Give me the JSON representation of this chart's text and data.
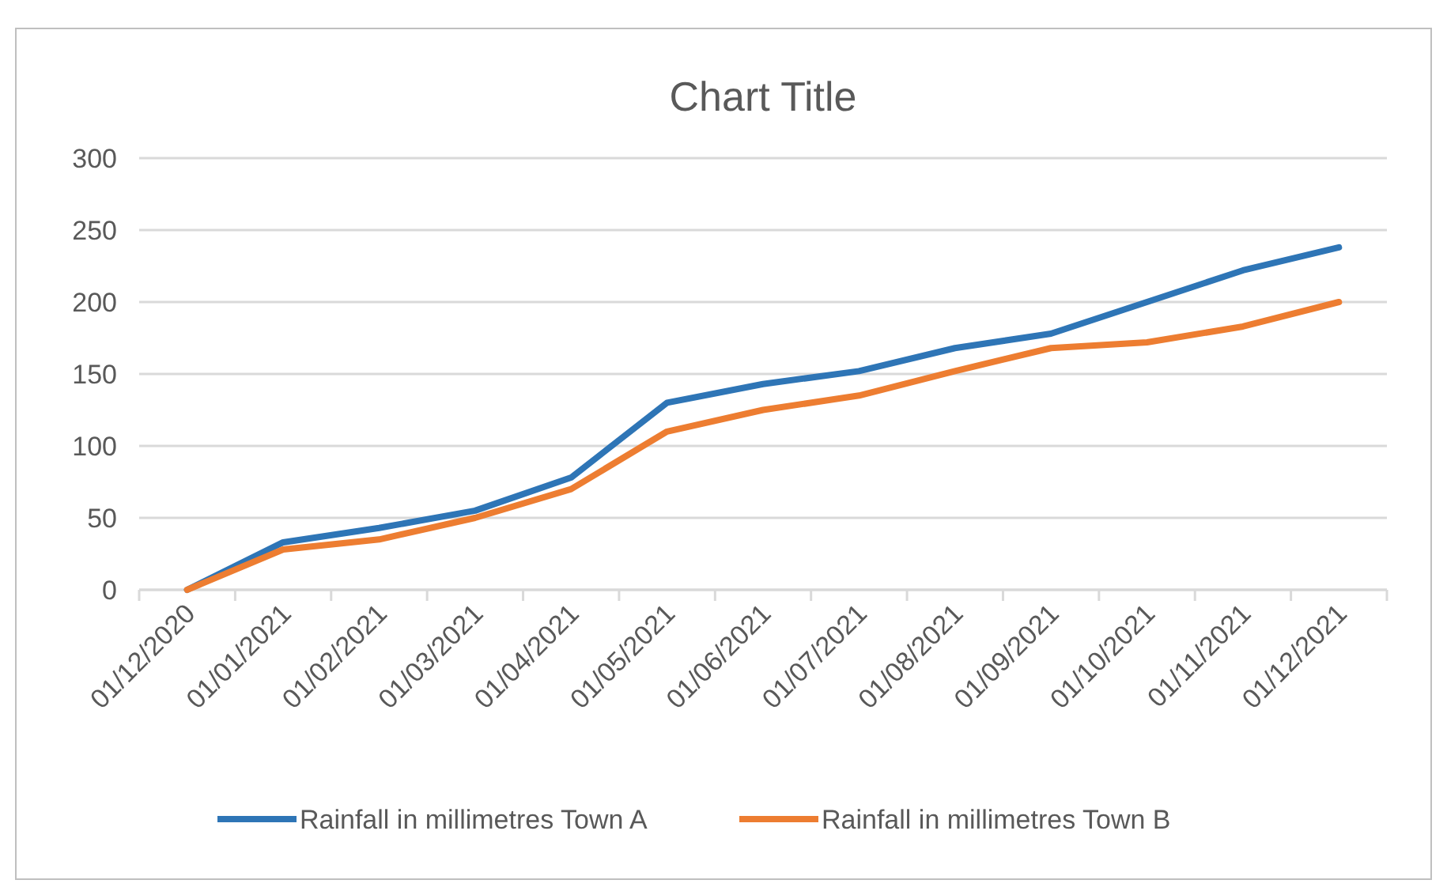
{
  "chart_data": {
    "type": "line",
    "title": "Chart Title",
    "categories": [
      "01/12/2020",
      "01/01/2021",
      "01/02/2021",
      "01/03/2021",
      "01/04/2021",
      "01/05/2021",
      "01/06/2021",
      "01/07/2021",
      "01/08/2021",
      "01/09/2021",
      "01/10/2021",
      "01/11/2021",
      "01/12/2021"
    ],
    "series": [
      {
        "name": "Rainfall in millimetres Town A",
        "color": "#2e75b6",
        "values": [
          0,
          33,
          43,
          55,
          78,
          130,
          143,
          152,
          168,
          178,
          200,
          222,
          238
        ]
      },
      {
        "name": "Rainfall in millimetres Town B",
        "color": "#ed7d31",
        "values": [
          0,
          28,
          35,
          50,
          70,
          110,
          125,
          135,
          152,
          168,
          172,
          183,
          200
        ]
      }
    ],
    "ylim": [
      0,
      300
    ],
    "yticks": [
      0,
      50,
      100,
      150,
      200,
      250,
      300
    ],
    "grid": "y",
    "legend": "bottom",
    "marker": "none",
    "line_style": "solid"
  }
}
